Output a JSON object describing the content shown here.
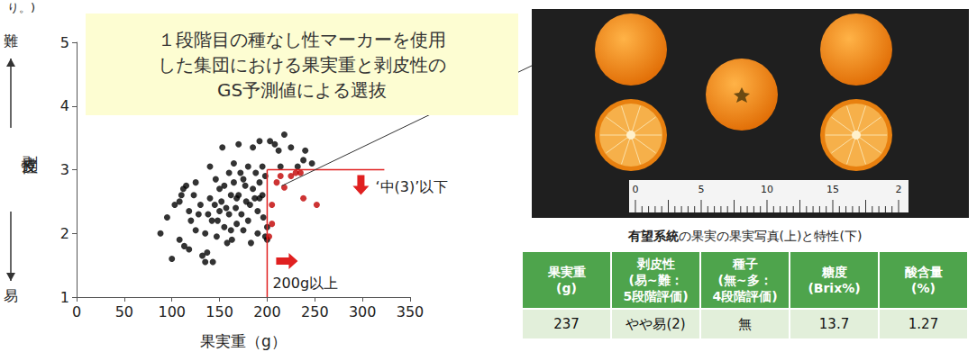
{
  "chart_data": {
    "type": "scatter",
    "xlabel": "果実重（g）",
    "ylabel": "剥皮性",
    "xlim": [
      0,
      350
    ],
    "xticks": [
      0,
      50,
      100,
      150,
      200,
      250,
      300,
      350
    ],
    "ylim": [
      1,
      5
    ],
    "yticks": [
      1,
      2,
      3,
      4,
      5
    ],
    "grid": false,
    "marker": "circle",
    "series": [
      {
        "color": "#000000",
        "values": [
          [
            88,
            2.0
          ],
          [
            95,
            2.25
          ],
          [
            100,
            1.6
          ],
          [
            103,
            2.45
          ],
          [
            108,
            2.5
          ],
          [
            110,
            2.6
          ],
          [
            112,
            2.7
          ],
          [
            115,
            2.75
          ],
          [
            113,
            1.8
          ],
          [
            118,
            2.35
          ],
          [
            120,
            2.2
          ],
          [
            123,
            2.6
          ],
          [
            125,
            2.05
          ],
          [
            128,
            2.3
          ],
          [
            130,
            2.45
          ],
          [
            132,
            1.65
          ],
          [
            135,
            1.55
          ],
          [
            137,
            1.7
          ],
          [
            138,
            2.3
          ],
          [
            140,
            2.55
          ],
          [
            140,
            3.05
          ],
          [
            142,
            2.2
          ],
          [
            143,
            1.55
          ],
          [
            145,
            2.45
          ],
          [
            147,
            1.95
          ],
          [
            148,
            2.2
          ],
          [
            150,
            2.35
          ],
          [
            150,
            2.7
          ],
          [
            152,
            2.5
          ],
          [
            153,
            3.35
          ],
          [
            155,
            2.1
          ],
          [
            155,
            2.75
          ],
          [
            157,
            2.4
          ],
          [
            158,
            1.85
          ],
          [
            160,
            2.3
          ],
          [
            160,
            2.95
          ],
          [
            162,
            2.6
          ],
          [
            162,
            2.05
          ],
          [
            165,
            2.8
          ],
          [
            165,
            3.1
          ],
          [
            167,
            2.4
          ],
          [
            168,
            2.15
          ],
          [
            170,
            3.4
          ],
          [
            170,
            2.6
          ],
          [
            172,
            2.95
          ],
          [
            173,
            2.3
          ],
          [
            175,
            2.05
          ],
          [
            175,
            2.85
          ],
          [
            178,
            2.5
          ],
          [
            180,
            3.05
          ],
          [
            180,
            2.2
          ],
          [
            182,
            2.45
          ],
          [
            183,
            1.85
          ],
          [
            185,
            3.35
          ],
          [
            185,
            2.7
          ],
          [
            187,
            2.55
          ],
          [
            188,
            2.95
          ],
          [
            190,
            2.35
          ],
          [
            190,
            2.0
          ],
          [
            192,
            3.45
          ],
          [
            192,
            2.8
          ],
          [
            195,
            2.6
          ],
          [
            195,
            3.05
          ],
          [
            196,
            2.25
          ],
          [
            198,
            2.9
          ],
          [
            198,
            1.95
          ],
          [
            200,
            1.9
          ],
          [
            200,
            2.1
          ],
          [
            203,
            3.45
          ],
          [
            208,
            3.4
          ],
          [
            212,
            3.3
          ],
          [
            214,
            3.05
          ],
          [
            218,
            3.55
          ],
          [
            225,
            3.35
          ],
          [
            232,
            3.05
          ],
          [
            238,
            3.15
          ],
          [
            240,
            3.3
          ],
          [
            247,
            3.1
          ],
          [
            125,
            2.8
          ],
          [
            135,
            2.0
          ],
          [
            118,
            1.75
          ],
          [
            163,
            1.9
          ],
          [
            177,
            2.75
          ],
          [
            146,
            2.85
          ],
          [
            108,
            1.9
          ],
          [
            192,
            2.55
          ],
          [
            168,
            2.55
          ]
        ]
      },
      {
        "color": "#c00000",
        "values": [
          [
            202,
            1.95
          ],
          [
            205,
            2.45
          ],
          [
            210,
            2.8
          ],
          [
            214,
            2.9
          ],
          [
            218,
            2.72
          ],
          [
            225,
            2.9
          ],
          [
            230,
            2.95
          ],
          [
            235,
            2.95
          ],
          [
            238,
            2.55
          ],
          [
            252,
            2.45
          ],
          [
            205,
            2.15
          ]
        ]
      }
    ],
    "thresholds": {
      "x": 200,
      "y": 3
    },
    "annotations": {
      "title_box": [
        "１段階目の種なし性マーカーを使用",
        "した集団における果実重と剥皮性の",
        "GS予測値による選抜"
      ],
      "y_top": "難",
      "y_bottom": "易",
      "below_threshold": "‘中(3)’以下",
      "above_threshold": "200g以上"
    }
  },
  "fragment": "り。)",
  "photo": {
    "ruler_labels": [
      "0",
      "5",
      "10",
      "15",
      "2"
    ]
  },
  "caption": {
    "bold": "有望系統",
    "rest": "の果実の果実写真(上)と特性(下)"
  },
  "table": {
    "header": [
      [
        "果実重",
        "(g)"
      ],
      [
        "剥皮性",
        "(易~難：",
        "5段階評価)"
      ],
      [
        "種子",
        "(無~多：",
        "4段階評価)"
      ],
      [
        "糖度",
        "(Brix%)"
      ],
      [
        "酸含量",
        "(%)"
      ]
    ],
    "rows": [
      [
        "237",
        "やや易(2)",
        "無",
        "13.7",
        "1.27"
      ]
    ]
  }
}
